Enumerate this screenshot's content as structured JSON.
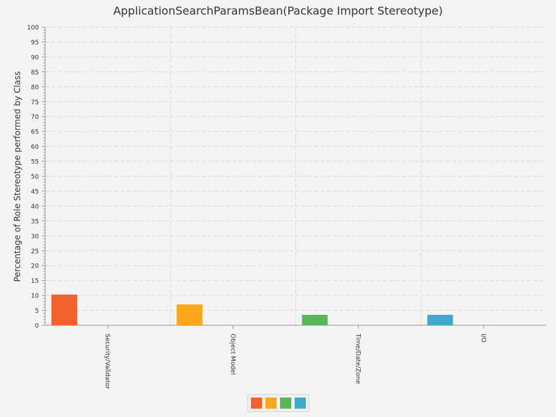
{
  "chart_data": {
    "type": "bar",
    "title": "ApplicationSearchParamsBean(Package Import Stereotype)",
    "xlabel": "",
    "ylabel": "Percentage of Role Stereotype performed by Class",
    "categories": [
      "Security/Validator",
      "Object Model",
      "Time/Date/Zone",
      "I/O"
    ],
    "values": [
      10.3,
      7.0,
      3.5,
      3.5
    ],
    "colors": [
      "#f3622d",
      "#fba71b",
      "#57b757",
      "#41a9c9"
    ],
    "ylim": [
      0,
      100
    ],
    "ytick_step": 5,
    "grid": true,
    "legend": "bottom-center"
  }
}
